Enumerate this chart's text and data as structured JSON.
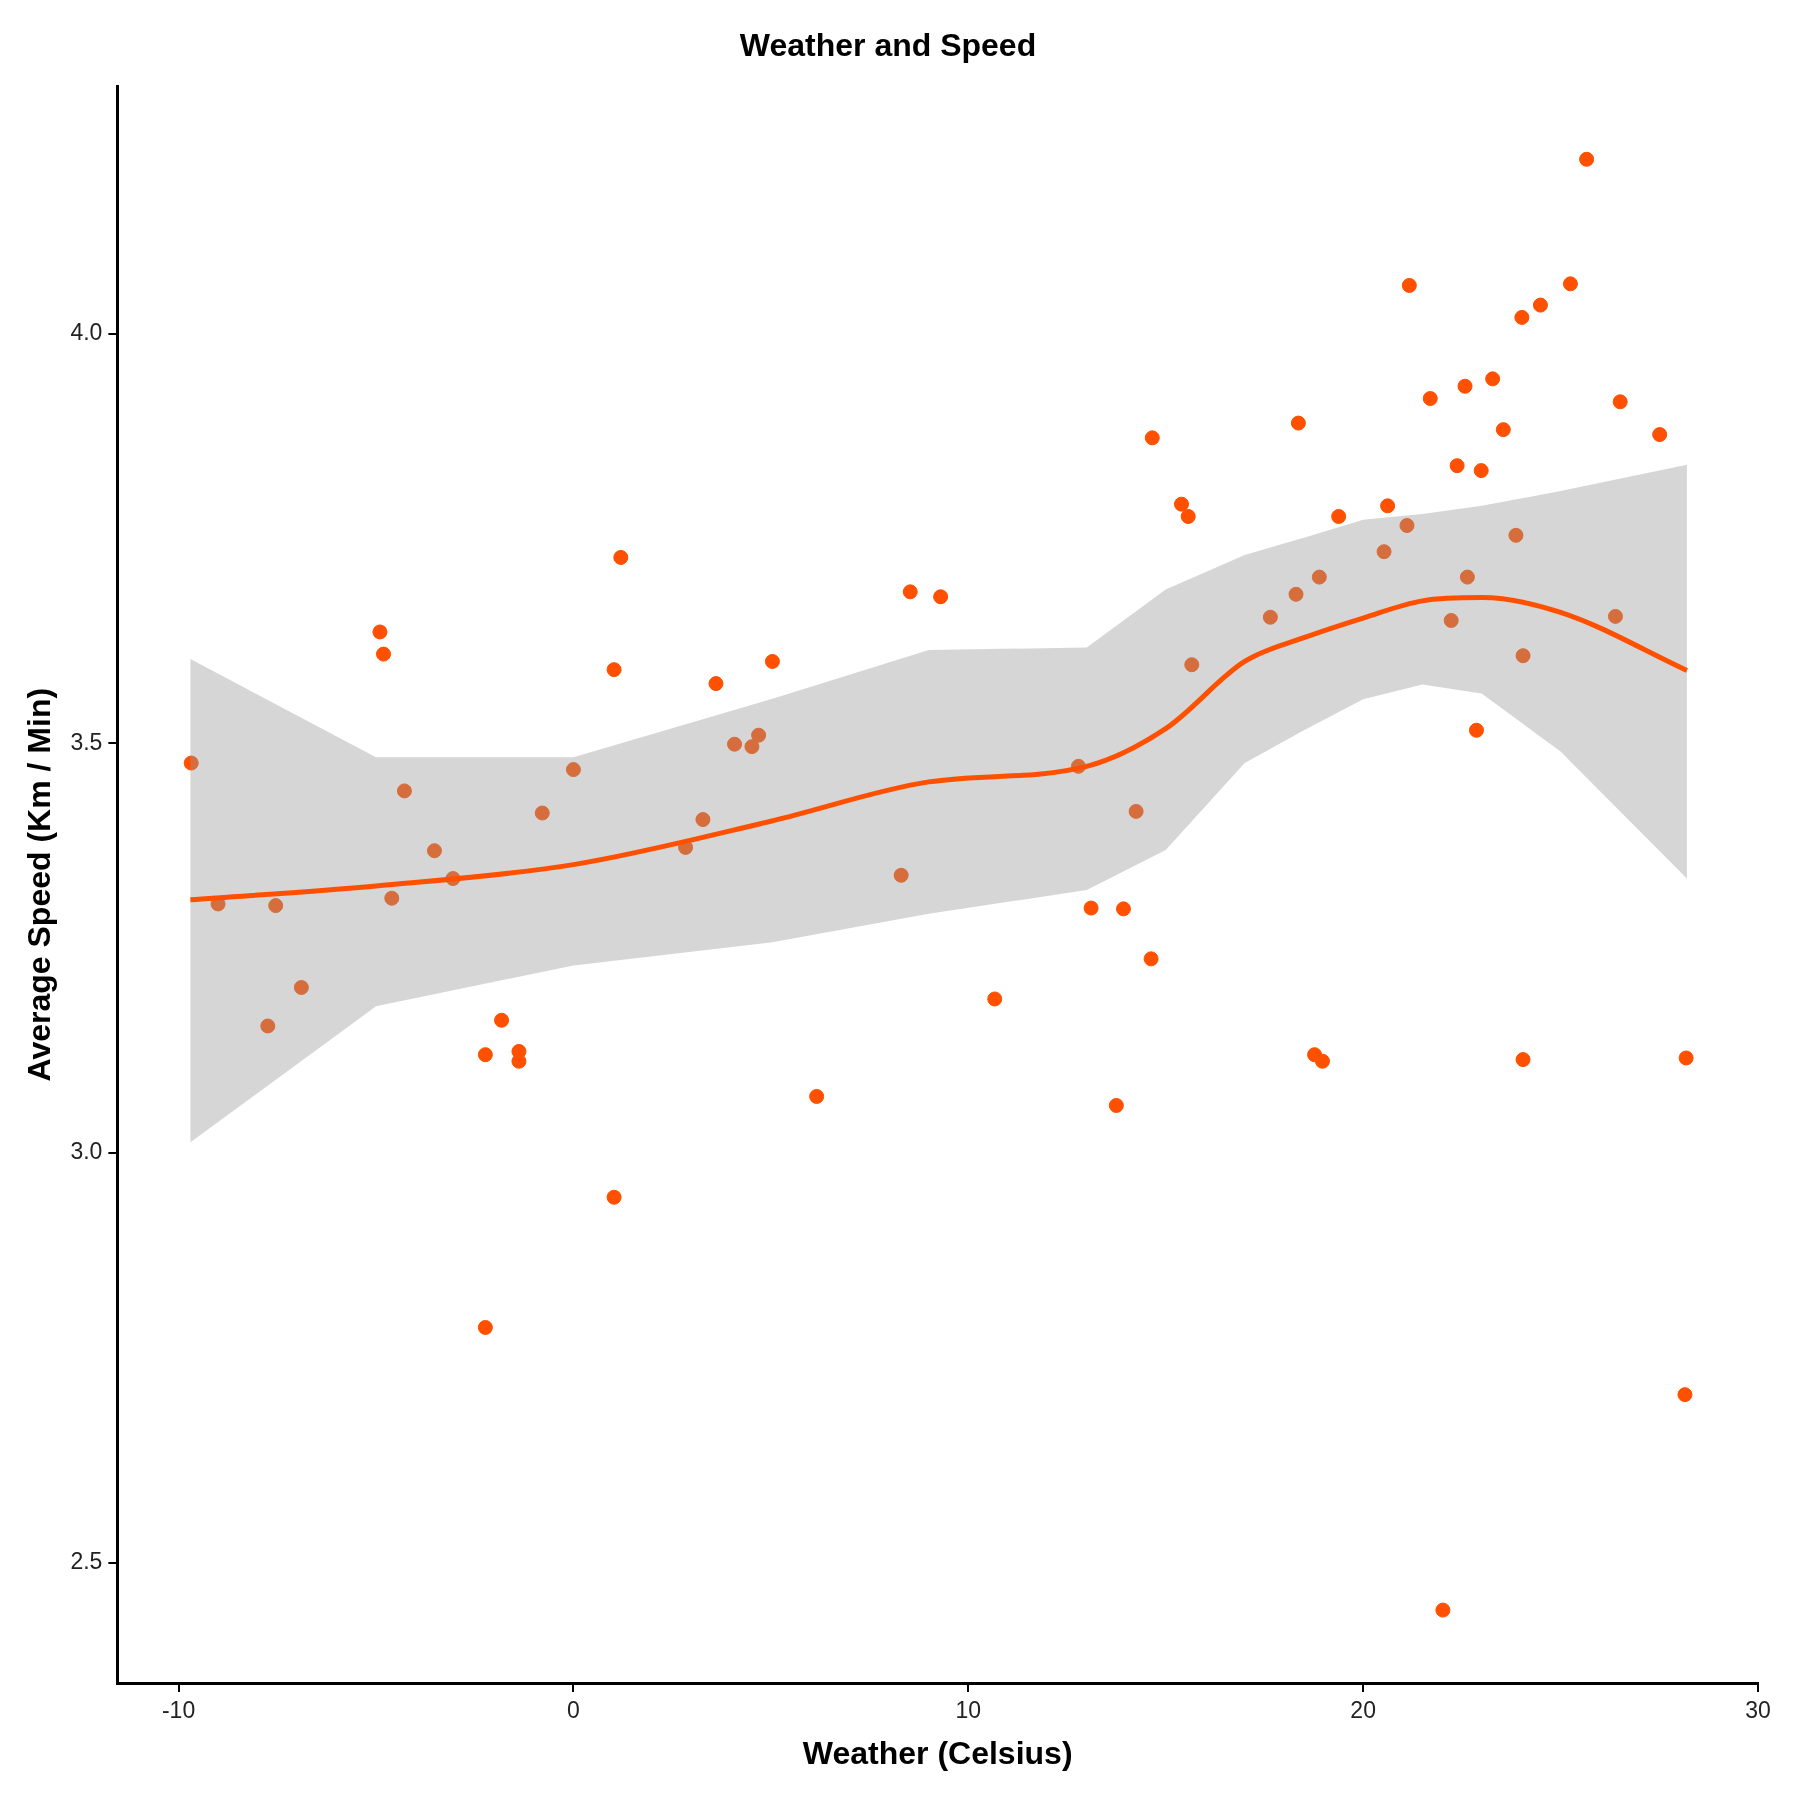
{
  "chart_data": {
    "type": "scatter",
    "title": "Weather and Speed",
    "xlabel": "Weather (Celsius)",
    "ylabel": "Average Speed (Km / Min)",
    "xlim": [
      -11.55,
      30
    ],
    "ylim": [
      2.353,
      4.302
    ],
    "xticks": [
      -10,
      0,
      10,
      20,
      30
    ],
    "yticks": [
      2.5,
      {
        "value": 3,
        "label": "3.0"
      },
      3.5,
      {
        "value": 4,
        "label": "4.0"
      }
    ],
    "grid": false,
    "legend": false,
    "marker": "circle",
    "series": [
      {
        "color": "#ff5000",
        "x": [
          -9.68,
          -9.0,
          -7.54,
          -7.74,
          -6.89,
          -4.9,
          -4.81,
          -4.28,
          -4.6,
          -3.52,
          -3.05,
          -2.23,
          -2.23,
          -1.82,
          -1.38,
          -1.38,
          -0.79,
          0.0,
          1.03,
          1.2,
          1.03,
          2.84,
          3.28,
          3.61,
          4.08,
          4.52,
          4.69,
          5.04,
          6.16,
          8.3,
          8.53,
          9.3,
          10.67,
          12.79,
          13.11,
          13.93,
          13.75,
          14.25,
          14.63,
          14.66,
          15.4,
          15.57,
          15.66,
          17.65,
          18.3,
          18.36,
          18.77,
          18.97,
          18.89,
          19.38,
          20.53,
          20.62,
          21.11,
          21.17,
          21.7,
          22.02,
          22.23,
          22.38,
          22.58,
          22.64,
          22.87,
          22.99,
          23.28,
          23.55,
          23.87,
          24.02,
          24.05,
          24.05,
          24.49,
          25.25,
          25.66,
          26.39,
          26.51,
          27.51,
          28.15,
          28.18
        ],
        "values": [
          3.476,
          3.304,
          3.302,
          3.155,
          3.202,
          3.636,
          3.609,
          3.442,
          3.311,
          3.369,
          3.335,
          3.12,
          2.787,
          3.162,
          3.124,
          3.112,
          3.415,
          3.468,
          3.59,
          3.727,
          2.946,
          3.373,
          3.407,
          3.573,
          3.499,
          3.496,
          3.51,
          3.6,
          3.069,
          3.339,
          3.685,
          3.679,
          3.188,
          3.472,
          3.299,
          3.298,
          3.058,
          3.417,
          3.237,
          3.873,
          3.792,
          3.777,
          3.596,
          3.654,
          3.682,
          3.891,
          3.12,
          3.112,
          3.703,
          3.777,
          3.734,
          3.79,
          3.766,
          4.059,
          3.921,
          2.442,
          3.65,
          3.839,
          3.936,
          3.703,
          3.516,
          3.833,
          3.945,
          3.883,
          3.754,
          4.02,
          3.114,
          3.607,
          4.035,
          4.061,
          4.213,
          3.655,
          3.917,
          3.877,
          2.705,
          3.116
        ]
      },
      {
        "type": "line",
        "color": "#ff5000",
        "marker": "none",
        "line_style": "solid",
        "x": [
          -9.7,
          -5,
          0,
          5,
          9,
          13,
          15,
          17,
          18.5,
          20,
          21.5,
          23,
          25,
          28.2
        ],
        "values": [
          3.309,
          3.326,
          3.352,
          3.405,
          3.453,
          3.472,
          3.518,
          3.6,
          3.629,
          3.653,
          3.674,
          3.678,
          3.66,
          3.589
        ],
        "upper": [
          3.603,
          3.483,
          3.483,
          3.554,
          3.614,
          3.617,
          3.688,
          3.73,
          3.751,
          3.773,
          3.78,
          3.79,
          3.808,
          3.84
        ],
        "lower": [
          3.013,
          3.179,
          3.229,
          3.257,
          3.292,
          3.321,
          3.37,
          3.476,
          3.516,
          3.554,
          3.572,
          3.561,
          3.49,
          3.335
        ]
      }
    ]
  }
}
